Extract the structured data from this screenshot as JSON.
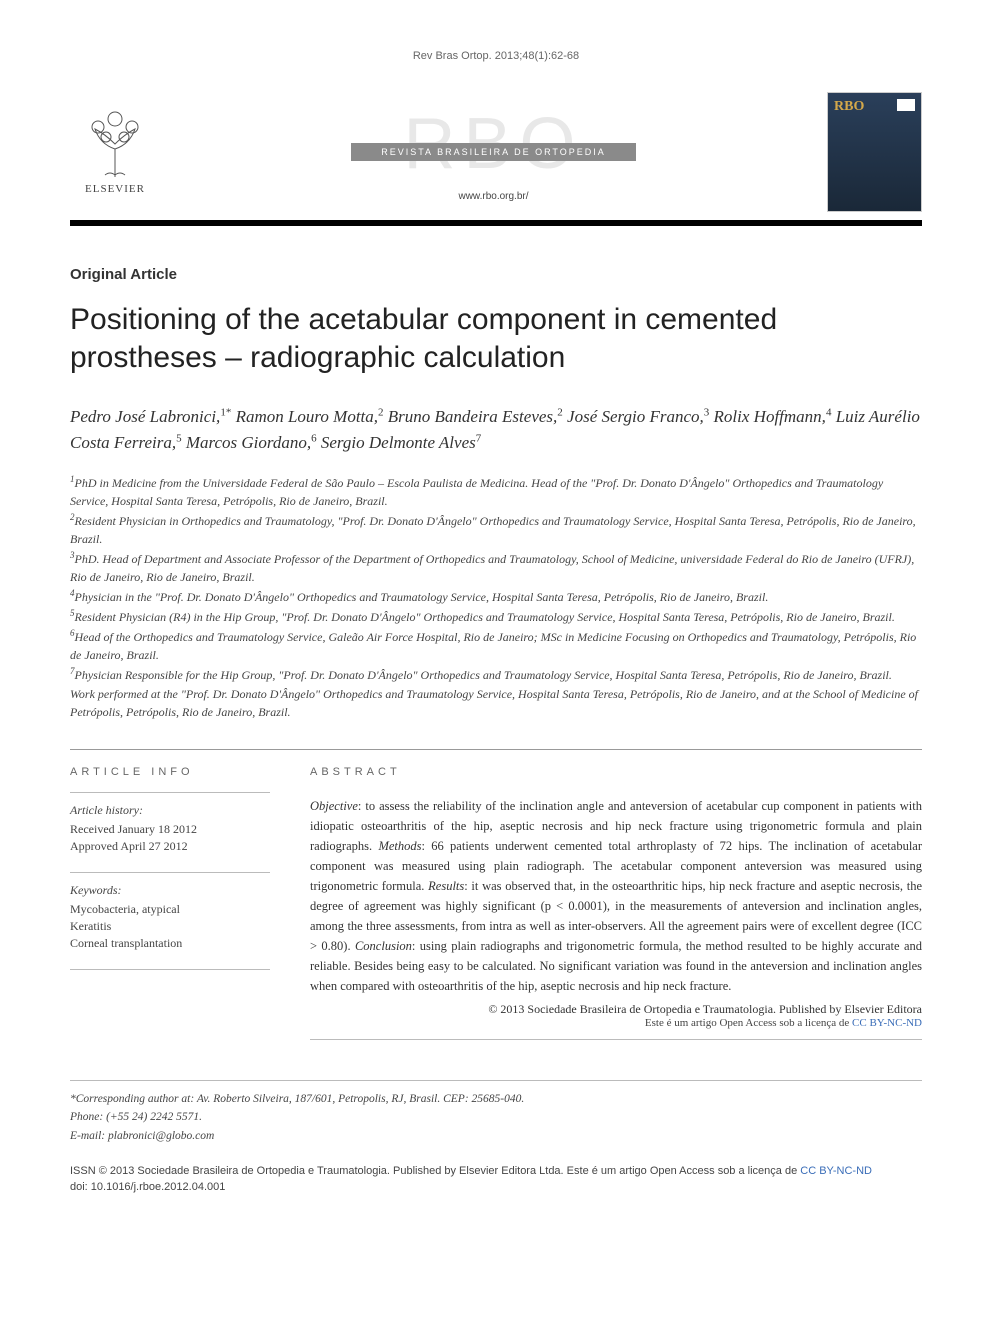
{
  "running_head": "Rev Bras Ortop. 2013;48(1):62-68",
  "publisher": {
    "name": "ELSEVIER",
    "tree_color": "#555555"
  },
  "journal": {
    "watermark": "RBO",
    "title_bar": "REVISTA BRASILEIRA DE ORTOPEDIA",
    "url": "www.rbo.org.br/",
    "cover_title": "RBO",
    "cover_bg_top": "#2a3f5a",
    "cover_bg_bottom": "#1a2838"
  },
  "article": {
    "type": "Original Article",
    "title": "Positioning of the acetabular component in cemented prostheses – radiographic calculation"
  },
  "authors_html": "Pedro José Labronici,<sup>1*</sup> Ramon Louro Motta,<sup>2</sup> Bruno Bandeira Esteves,<sup>2</sup> José Sergio Franco,<sup>3</sup> Rolix Hoffmann,<sup>4</sup> Luiz Aurélio Costa Ferreira,<sup>5</sup> Marcos Giordano,<sup>6</sup> Sergio Delmonte Alves<sup>7</sup>",
  "affiliations": [
    "<sup>1</sup>PhD in Medicine from the Universidade Federal de São Paulo – Escola Paulista de Medicina. Head of the \"Prof. Dr. Donato D'Ângelo\" Orthopedics and Traumatology Service, Hospital Santa Teresa, Petrópolis, Rio de Janeiro, Brazil.",
    "<sup>2</sup>Resident Physician in Orthopedics and Traumatology, \"Prof. Dr. Donato D'Ângelo\" Orthopedics and Traumatology Service, Hospital Santa Teresa, Petrópolis, Rio de Janeiro, Brazil.",
    "<sup>3</sup>PhD. Head of Department and Associate Professor of the Department of Orthopedics and Traumatology, School of Medicine, universidade Federal do Rio de Janeiro (UFRJ), Rio de Janeiro, Rio de Janeiro, Brazil.",
    "<sup>4</sup>Physician in the \"Prof. Dr. Donato D'Ângelo\" Orthopedics and Traumatology Service, Hospital Santa Teresa, Petrópolis, Rio de Janeiro, Brazil.",
    "<sup>5</sup>Resident Physician (R4) in the Hip Group, \"Prof. Dr. Donato D'Ângelo\" Orthopedics and Traumatology Service, Hospital Santa Teresa, Petrópolis, Rio de Janeiro, Brazil.",
    "<sup>6</sup>Head of the Orthopedics and Traumatology Service, Galeão Air Force Hospital, Rio de Janeiro; MSc in Medicine Focusing on Orthopedics and Traumatology, Petrópolis, Rio de Janeiro, Brazil.",
    "<sup>7</sup>Physician Responsible for the Hip Group, \"Prof. Dr. Donato D'Ângelo\" Orthopedics and Traumatology Service, Hospital Santa Teresa, Petrópolis, Rio de Janeiro, Brazil.",
    "Work performed at the \"Prof. Dr. Donato D'Ângelo\" Orthopedics and Traumatology Service, Hospital Santa Teresa, Petrópolis, Rio de Janeiro, and at the School of Medicine of Petrópolis, Petrópolis, Rio de Janeiro, Brazil."
  ],
  "article_info": {
    "heading": "ARTICLE INFO",
    "history_label": "Article history:",
    "received": "Received January 18 2012",
    "approved": "Approved April 27 2012",
    "keywords_label": "Keywords:",
    "keywords": [
      "Mycobacteria, atypical",
      "Keratitis",
      "Corneal transplantation"
    ]
  },
  "abstract": {
    "heading": "ABSTRACT",
    "body_html": "<em>Objective</em>: to assess the reliability of the inclination angle and anteversion of acetabular cup component in patients with idiopatic osteoarthritis of the hip, aseptic necrosis and hip neck fracture using trigonometric formula and plain radiographs. <em>Methods</em>: 66 patients underwent cemented total arthroplasty of 72 hips. The inclination of acetabular component was measured using plain radiograph. The acetabular component anteversion was measured using trigonometric formula. <em>Results</em>: it was observed that, in the osteoarthritic hips, hip neck fracture and aseptic necrosis, the degree of agreement was highly significant (p < 0.0001), in the measurements of anteversion and inclination angles, among the three assessments, from intra as well as inter-observers. All the agreement pairs were of excellent degree (ICC > 0.80). <em>Conclusion</em>: using plain radiographs and trigonometric formula, the method resulted to be highly accurate and reliable. Besides being easy to be calculated. No significant variation was found in the anteversion and inclination angles when compared with osteoarthritis of the hip, aseptic necrosis and hip neck fracture.",
    "copyright": "© 2013 Sociedade Brasileira de Ortopedia e Traumatologia. Published by Elsevier Editora",
    "license_prefix": "Este é um artigo Open Access sob a licença de ",
    "license_link_text": "CC BY-NC-ND"
  },
  "corresponding": {
    "line1": "*Corresponding author at: Av. Roberto Silveira, 187/601, Petropolis, RJ, Brasil. CEP: 25685-040.",
    "line2": "Phone: (+55 24) 2242 5571.",
    "line3": "E-mail: plabronici@globo.com"
  },
  "footer": {
    "issn_line_prefix": "ISSN © 2013 Sociedade Brasileira de Ortopedia e Traumatologia. Published by Elsevier Editora Ltda. ",
    "issn_license_prefix": "Este é um artigo Open Access sob a licença de ",
    "issn_license_link": "CC BY-NC-ND",
    "doi": "doi: 10.1016/j.rboe.2012.04.001"
  },
  "colors": {
    "text": "#333333",
    "rule": "#000000",
    "light_rule": "#bbbbbb",
    "link": "#3a6db8",
    "watermark": "#e8e8e8",
    "title_bar_bg": "#8a8a8a"
  }
}
